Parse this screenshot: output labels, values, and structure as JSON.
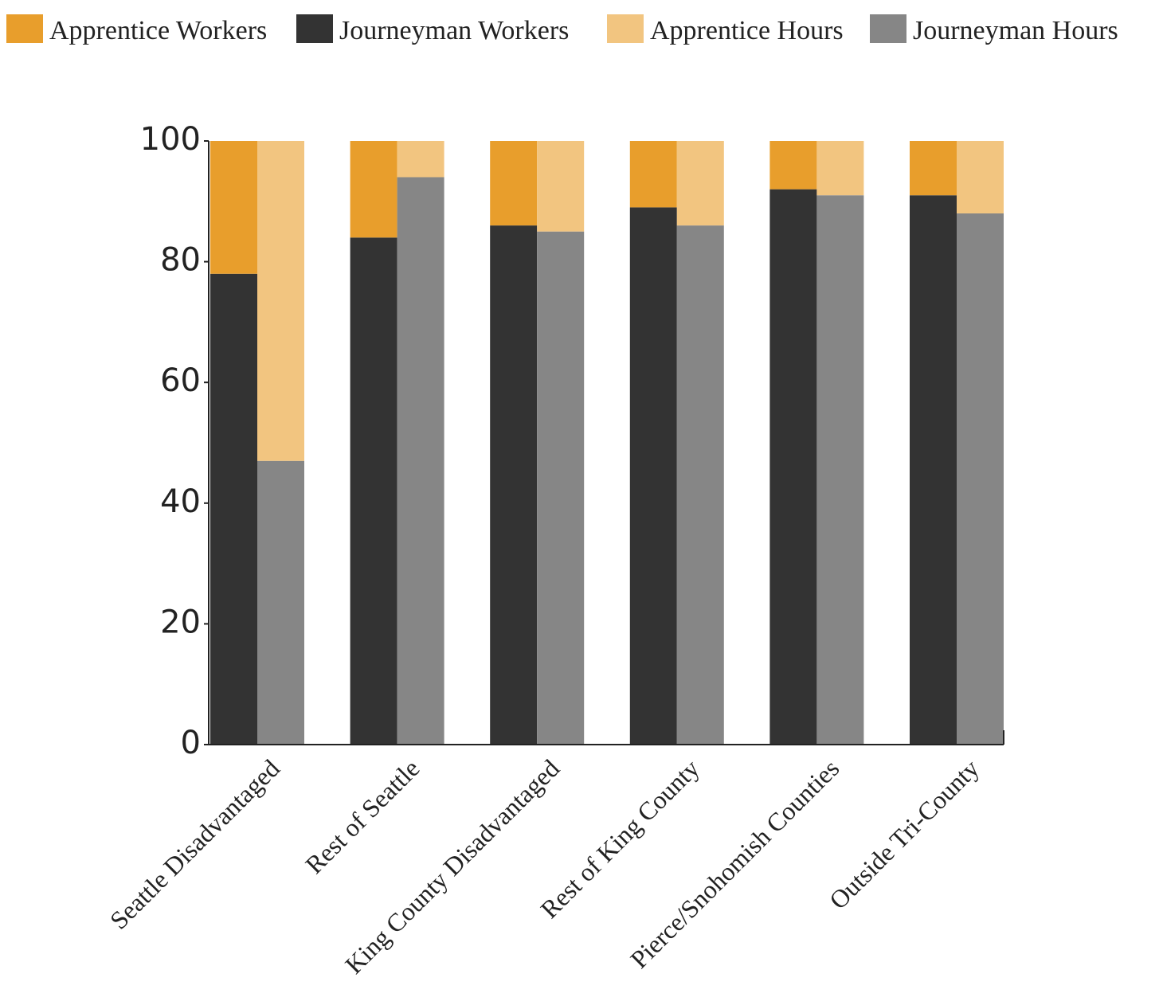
{
  "chart_data": {
    "type": "grouped-stacked-bar",
    "categories": [
      "Seattle Disadvantaged",
      "Rest of Seattle",
      "King County Disadvantaged",
      "Rest of King County",
      "Pierce/Snohomish Counties",
      "Outside Tri-County"
    ],
    "series": [
      {
        "name": "Apprentice Workers",
        "color": "#e89e2c",
        "stack": "workers",
        "values": [
          22,
          16,
          14,
          11,
          8,
          9
        ]
      },
      {
        "name": "Journeyman Workers",
        "color": "#333333",
        "stack": "workers",
        "values": [
          78,
          84,
          86,
          89,
          92,
          91
        ],
        "value_labels": [
          "78%",
          "84%",
          "86%",
          "89%",
          "92%",
          "91%"
        ]
      },
      {
        "name": "Apprentice Hours",
        "color": "#f2c580",
        "stack": "hours",
        "values": [
          53,
          6,
          15,
          14,
          9,
          12
        ]
      },
      {
        "name": "Journeyman Hours",
        "color": "#868686",
        "stack": "hours",
        "values": [
          47,
          94,
          85,
          86,
          91,
          88
        ],
        "value_labels": [
          "47%",
          "94%",
          "85%",
          "86%",
          "91%",
          "88%"
        ]
      }
    ],
    "ylim": [
      0,
      100
    ],
    "yticks": [
      0,
      20,
      40,
      60,
      80,
      100
    ],
    "grid": false,
    "legend": "top"
  }
}
